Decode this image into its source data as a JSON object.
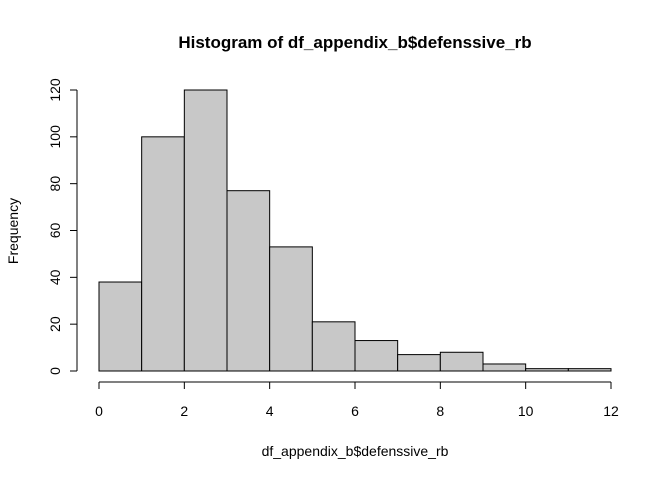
{
  "chart_data": {
    "type": "bar",
    "title": "Histogram of df_appendix_b$defenssive_rb",
    "xlabel": "df_appendix_b$defenssive_rb",
    "ylabel": "Frequency",
    "bins": [
      {
        "from": 0,
        "to": 1,
        "count": 38
      },
      {
        "from": 1,
        "to": 2,
        "count": 100
      },
      {
        "from": 2,
        "to": 3,
        "count": 120
      },
      {
        "from": 3,
        "to": 4,
        "count": 77
      },
      {
        "from": 4,
        "to": 5,
        "count": 53
      },
      {
        "from": 5,
        "to": 6,
        "count": 21
      },
      {
        "from": 6,
        "to": 7,
        "count": 13
      },
      {
        "from": 7,
        "to": 8,
        "count": 7
      },
      {
        "from": 8,
        "to": 9,
        "count": 8
      },
      {
        "from": 9,
        "to": 10,
        "count": 3
      },
      {
        "from": 10,
        "to": 11,
        "count": 1
      },
      {
        "from": 11,
        "to": 12,
        "count": 1
      }
    ],
    "xlim": [
      0,
      12
    ],
    "ylim": [
      0,
      120
    ],
    "x_ticks": [
      "0",
      "2",
      "4",
      "6",
      "8",
      "10",
      "12"
    ],
    "y_ticks": [
      "0",
      "20",
      "40",
      "60",
      "80",
      "100",
      "120"
    ],
    "grid": false,
    "colors": {
      "bar_fill": "#c8c8c8",
      "bar_stroke": "#000000"
    }
  }
}
